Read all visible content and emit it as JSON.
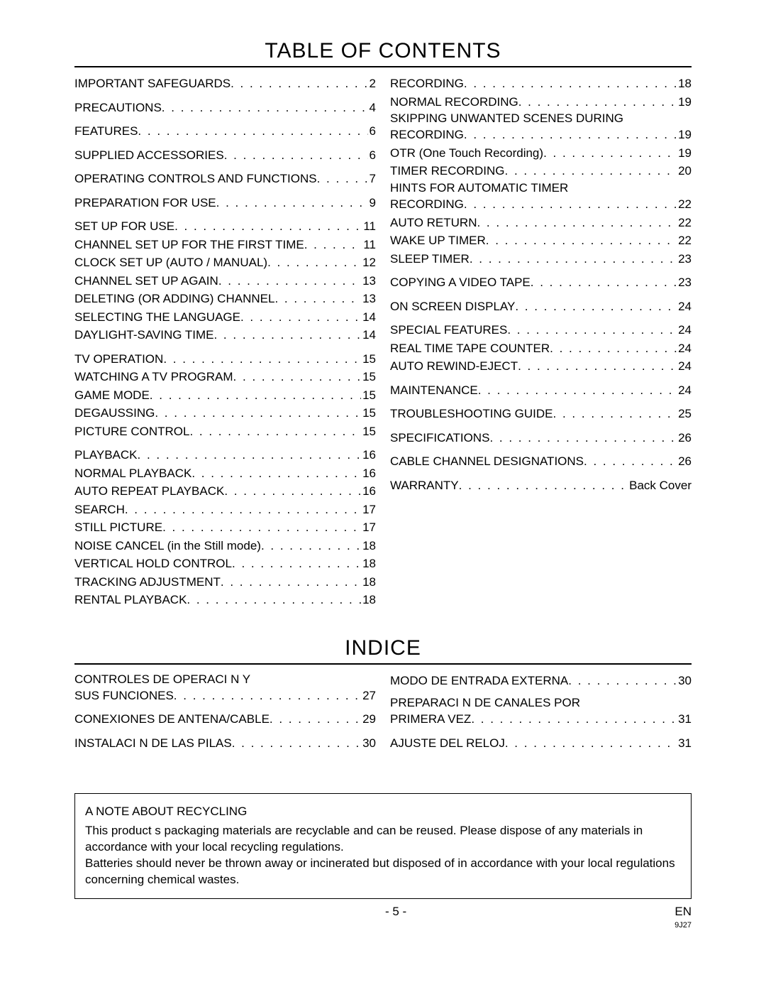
{
  "toc": {
    "title": "TABLE OF CONTENTS",
    "left": [
      [
        {
          "label": "IMPORTANT SAFEGUARDS",
          "page": "2"
        }
      ],
      [
        {
          "label": "PRECAUTIONS",
          "page": "4"
        }
      ],
      [
        {
          "label": "FEATURES",
          "page": "6"
        }
      ],
      [
        {
          "label": "SUPPLIED ACCESSORIES",
          "page": "6"
        }
      ],
      [
        {
          "label": "OPERATING CONTROLS AND FUNCTIONS",
          "page": "7"
        }
      ],
      [
        {
          "label": "PREPARATION FOR USE",
          "page": "9"
        }
      ],
      [
        {
          "label": "SET UP FOR USE",
          "page": "11"
        },
        {
          "label": "CHANNEL SET UP FOR THE FIRST TIME",
          "page": "11"
        },
        {
          "label": "CLOCK SET UP (AUTO / MANUAL)",
          "page": "12"
        },
        {
          "label": "CHANNEL SET UP AGAIN",
          "page": "13"
        },
        {
          "label": "DELETING (OR ADDING) CHANNEL",
          "page": "13"
        },
        {
          "label": "SELECTING THE LANGUAGE",
          "page": "14"
        },
        {
          "label": "DAYLIGHT-SAVING TIME",
          "page": "14"
        }
      ],
      [
        {
          "label": "TV OPERATION",
          "page": "15"
        },
        {
          "label": "WATCHING A TV PROGRAM",
          "page": "15"
        },
        {
          "label": "GAME MODE",
          "page": "15"
        },
        {
          "label": "DEGAUSSING",
          "page": "15"
        },
        {
          "label": "PICTURE CONTROL",
          "page": "15"
        }
      ],
      [
        {
          "label": "PLAYBACK",
          "page": "16"
        },
        {
          "label": "NORMAL PLAYBACK",
          "page": "16"
        },
        {
          "label": "AUTO REPEAT PLAYBACK",
          "page": "16"
        },
        {
          "label": "SEARCH",
          "page": "17"
        },
        {
          "label": "STILL PICTURE",
          "page": "17"
        },
        {
          "label": "NOISE CANCEL (in the Still mode)",
          "page": "18"
        },
        {
          "label": "VERTICAL HOLD CONTROL",
          "page": "18"
        },
        {
          "label": "TRACKING ADJUSTMENT",
          "page": "18"
        },
        {
          "label": "RENTAL PLAYBACK",
          "page": "18"
        }
      ]
    ],
    "right": [
      [
        {
          "label": "RECORDING",
          "page": "18"
        },
        {
          "label": "NORMAL RECORDING",
          "page": "19"
        },
        {
          "label": "SKIPPING UNWANTED SCENES DURING RECORDING",
          "page": "19"
        },
        {
          "label": "OTR (One Touch Recording)",
          "page": "19"
        },
        {
          "label": "TIMER RECORDING",
          "page": "20"
        },
        {
          "label": "HINTS FOR AUTOMATIC TIMER RECORDING",
          "page": "22"
        },
        {
          "label": "AUTO RETURN",
          "page": "22"
        },
        {
          "label": "WAKE UP TIMER",
          "page": "22"
        },
        {
          "label": "SLEEP TIMER",
          "page": "23"
        }
      ],
      [
        {
          "label": "COPYING A VIDEO TAPE",
          "page": "23"
        }
      ],
      [
        {
          "label": "ON SCREEN DISPLAY",
          "page": "24"
        }
      ],
      [
        {
          "label": "SPECIAL FEATURES",
          "page": "24"
        },
        {
          "label": "REAL TIME TAPE COUNTER",
          "page": "24"
        },
        {
          "label": "AUTO REWIND-EJECT",
          "page": "24"
        }
      ],
      [
        {
          "label": "MAINTENANCE",
          "page": "24"
        }
      ],
      [
        {
          "label": "TROUBLESHOOTING GUIDE",
          "page": "25"
        }
      ],
      [
        {
          "label": "SPECIFICATIONS",
          "page": "26"
        }
      ],
      [
        {
          "label": "CABLE CHANNEL DESIGNATIONS",
          "page": "26"
        }
      ],
      [
        {
          "label": "WARRANTY",
          "page": "Back Cover"
        }
      ]
    ]
  },
  "indice": {
    "title": "INDICE",
    "left": [
      {
        "label": "CONTROLES DE OPERACI N Y SUS FUNCIONES",
        "page": "27"
      },
      {
        "label": "CONEXIONES DE ANTENA/CABLE",
        "page": "29"
      },
      {
        "label": "INSTALACI N DE LAS PILAS",
        "page": "30"
      }
    ],
    "right": [
      {
        "label": "MODO DE ENTRADA EXTERNA",
        "page": "30"
      },
      {
        "label": "PREPARACI N DE CANALES POR PRIMERA VEZ",
        "page": "31"
      },
      {
        "label": "AJUSTE DEL RELOJ",
        "page": "31"
      }
    ]
  },
  "recycling": {
    "title": "A NOTE ABOUT RECYCLING",
    "p1": "This product s packaging materials are recyclable and can be reused. Please dispose of any materials in accordance with your local recycling regulations.",
    "p2": "Batteries should never be thrown away or incinerated but disposed of in accordance with your local regulations concerning chemical wastes."
  },
  "footer": {
    "page": "- 5 -",
    "lang": "EN",
    "code": "9J27"
  }
}
